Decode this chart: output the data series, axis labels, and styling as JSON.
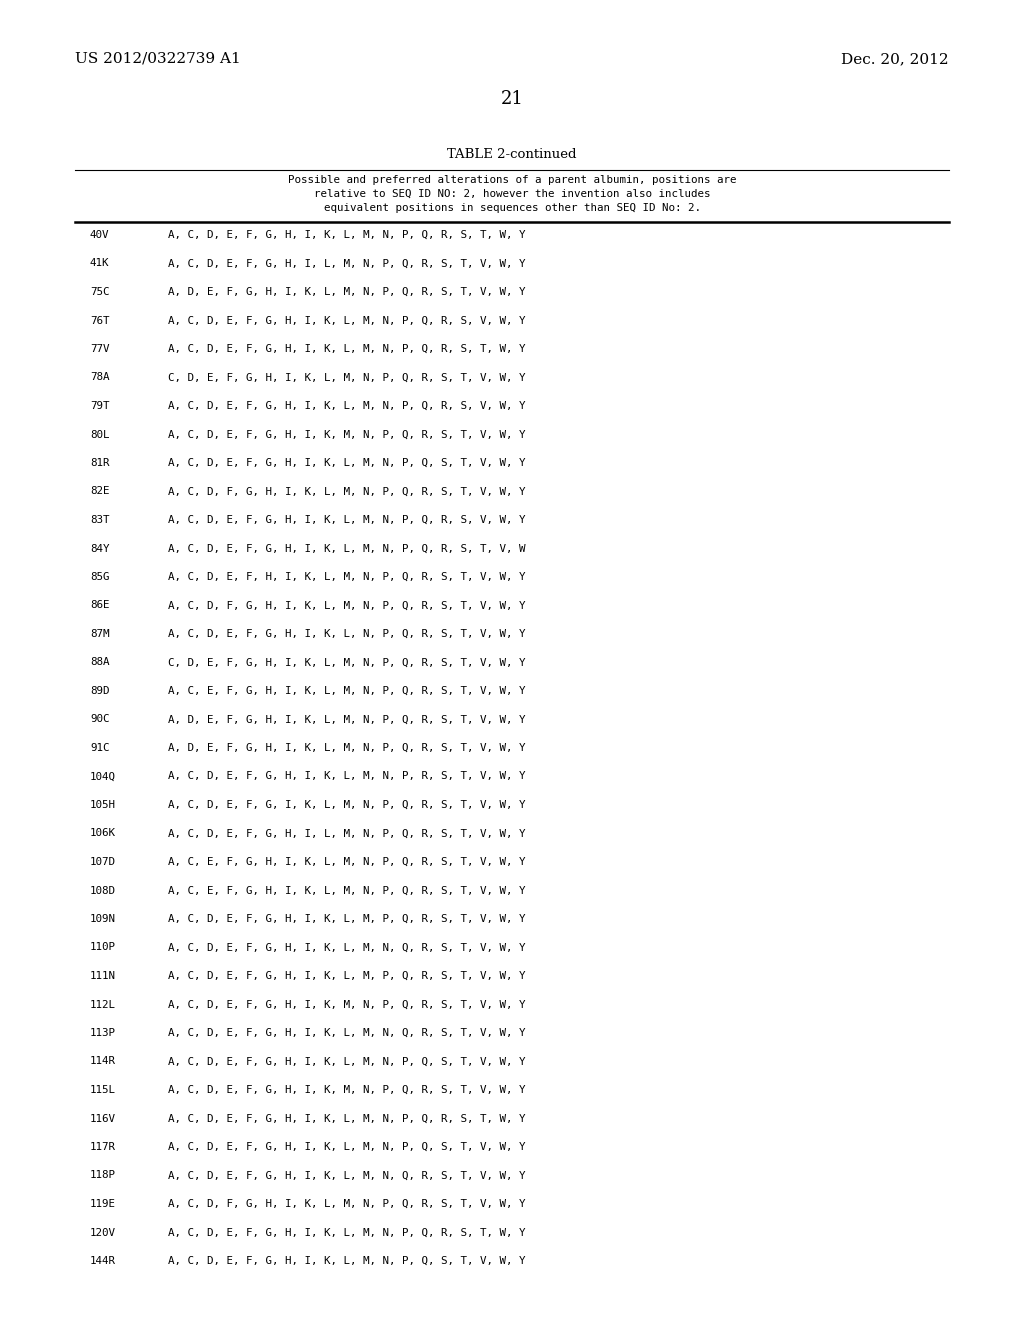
{
  "header_left": "US 2012/0322739 A1",
  "header_right": "Dec. 20, 2012",
  "page_number": "21",
  "table_title": "TABLE 2-continued",
  "table_header_line1": "Possible and preferred alterations of a parent albumin, positions are",
  "table_header_line2": "relative to SEQ ID NO: 2, however the invention also includes",
  "table_header_line3": "equivalent positions in sequences other than SEQ ID No: 2.",
  "rows": [
    [
      "40V",
      "A, C, D, E, F, G, H, I, K, L, M, N, P, Q, R, S, T, W, Y"
    ],
    [
      "41K",
      "A, C, D, E, F, G, H, I, L, M, N, P, Q, R, S, T, V, W, Y"
    ],
    [
      "75C",
      "A, D, E, F, G, H, I, K, L, M, N, P, Q, R, S, T, V, W, Y"
    ],
    [
      "76T",
      "A, C, D, E, F, G, H, I, K, L, M, N, P, Q, R, S, V, W, Y"
    ],
    [
      "77V",
      "A, C, D, E, F, G, H, I, K, L, M, N, P, Q, R, S, T, W, Y"
    ],
    [
      "78A",
      "C, D, E, F, G, H, I, K, L, M, N, P, Q, R, S, T, V, W, Y"
    ],
    [
      "79T",
      "A, C, D, E, F, G, H, I, K, L, M, N, P, Q, R, S, V, W, Y"
    ],
    [
      "80L",
      "A, C, D, E, F, G, H, I, K, M, N, P, Q, R, S, T, V, W, Y"
    ],
    [
      "81R",
      "A, C, D, E, F, G, H, I, K, L, M, N, P, Q, S, T, V, W, Y"
    ],
    [
      "82E",
      "A, C, D, F, G, H, I, K, L, M, N, P, Q, R, S, T, V, W, Y"
    ],
    [
      "83T",
      "A, C, D, E, F, G, H, I, K, L, M, N, P, Q, R, S, V, W, Y"
    ],
    [
      "84Y",
      "A, C, D, E, F, G, H, I, K, L, M, N, P, Q, R, S, T, V, W"
    ],
    [
      "85G",
      "A, C, D, E, F, H, I, K, L, M, N, P, Q, R, S, T, V, W, Y"
    ],
    [
      "86E",
      "A, C, D, F, G, H, I, K, L, M, N, P, Q, R, S, T, V, W, Y"
    ],
    [
      "87M",
      "A, C, D, E, F, G, H, I, K, L, N, P, Q, R, S, T, V, W, Y"
    ],
    [
      "88A",
      "C, D, E, F, G, H, I, K, L, M, N, P, Q, R, S, T, V, W, Y"
    ],
    [
      "89D",
      "A, C, E, F, G, H, I, K, L, M, N, P, Q, R, S, T, V, W, Y"
    ],
    [
      "90C",
      "A, D, E, F, G, H, I, K, L, M, N, P, Q, R, S, T, V, W, Y"
    ],
    [
      "91C",
      "A, D, E, F, G, H, I, K, L, M, N, P, Q, R, S, T, V, W, Y"
    ],
    [
      "104Q",
      "A, C, D, E, F, G, H, I, K, L, M, N, P, R, S, T, V, W, Y"
    ],
    [
      "105H",
      "A, C, D, E, F, G, I, K, L, M, N, P, Q, R, S, T, V, W, Y"
    ],
    [
      "106K",
      "A, C, D, E, F, G, H, I, L, M, N, P, Q, R, S, T, V, W, Y"
    ],
    [
      "107D",
      "A, C, E, F, G, H, I, K, L, M, N, P, Q, R, S, T, V, W, Y"
    ],
    [
      "108D",
      "A, C, E, F, G, H, I, K, L, M, N, P, Q, R, S, T, V, W, Y"
    ],
    [
      "109N",
      "A, C, D, E, F, G, H, I, K, L, M, P, Q, R, S, T, V, W, Y"
    ],
    [
      "110P",
      "A, C, D, E, F, G, H, I, K, L, M, N, Q, R, S, T, V, W, Y"
    ],
    [
      "111N",
      "A, C, D, E, F, G, H, I, K, L, M, P, Q, R, S, T, V, W, Y"
    ],
    [
      "112L",
      "A, C, D, E, F, G, H, I, K, M, N, P, Q, R, S, T, V, W, Y"
    ],
    [
      "113P",
      "A, C, D, E, F, G, H, I, K, L, M, N, Q, R, S, T, V, W, Y"
    ],
    [
      "114R",
      "A, C, D, E, F, G, H, I, K, L, M, N, P, Q, S, T, V, W, Y"
    ],
    [
      "115L",
      "A, C, D, E, F, G, H, I, K, M, N, P, Q, R, S, T, V, W, Y"
    ],
    [
      "116V",
      "A, C, D, E, F, G, H, I, K, L, M, N, P, Q, R, S, T, W, Y"
    ],
    [
      "117R",
      "A, C, D, E, F, G, H, I, K, L, M, N, P, Q, S, T, V, W, Y"
    ],
    [
      "118P",
      "A, C, D, E, F, G, H, I, K, L, M, N, Q, R, S, T, V, W, Y"
    ],
    [
      "119E",
      "A, C, D, F, G, H, I, K, L, M, N, P, Q, R, S, T, V, W, Y"
    ],
    [
      "120V",
      "A, C, D, E, F, G, H, I, K, L, M, N, P, Q, R, S, T, W, Y"
    ],
    [
      "144R",
      "A, C, D, E, F, G, H, I, K, L, M, N, P, Q, S, T, V, W, Y"
    ]
  ],
  "background_color": "#ffffff",
  "text_color": "#000000"
}
